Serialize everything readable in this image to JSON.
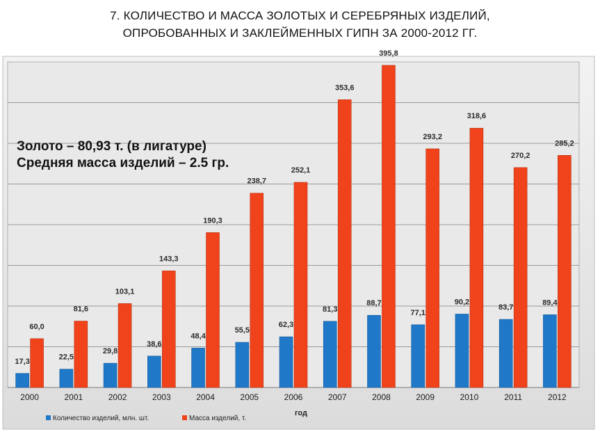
{
  "page": {
    "title_line1": "7. КОЛИЧЕСТВО И МАССА ЗОЛОТЫХ И СЕРЕБРЯНЫХ ИЗДЕЛИЙ,",
    "title_line2": "ОПРОБОВАННЫХ И ЗАКЛЕЙМЕННЫХ ГИПН ЗА 2000-2012 ГГ."
  },
  "chart_data": {
    "type": "bar",
    "title": "7. КОЛИЧЕСТВО И МАССА ЗОЛОТЫХ И СЕРЕБРЯНЫХ ИЗДЕЛИЙ, ОПРОБОВАННЫХ И ЗАКЛЕЙМЕННЫХ ГИПН ЗА 2000-2012 ГГ.",
    "xlabel": "год",
    "ylabel": "",
    "ylim": [
      0,
      400
    ],
    "grid": true,
    "legend_position": "bottom-left",
    "categories": [
      "2000",
      "2001",
      "2002",
      "2003",
      "2004",
      "2005",
      "2006",
      "2007",
      "2008",
      "2009",
      "2010",
      "2011",
      "2012"
    ],
    "series": [
      {
        "name": "Количество изделий, млн. шт.",
        "color": "#1f78c8",
        "values": [
          17.3,
          22.5,
          29.8,
          38.6,
          48.4,
          55.5,
          62.3,
          81.3,
          88.7,
          77.1,
          90.2,
          83.7,
          89.4
        ],
        "labels": [
          "17,3",
          "22,5",
          "29,8",
          "38,6",
          "48,4",
          "55,5",
          "62,3",
          "81,3",
          "88,7",
          "77,1",
          "90,2",
          "83,7",
          "89,4"
        ]
      },
      {
        "name": "Масса изделий, т.",
        "color": "#f0431b",
        "values": [
          60.0,
          81.6,
          103.1,
          143.3,
          190.3,
          238.7,
          252.1,
          353.6,
          395.8,
          293.2,
          318.6,
          270.2,
          285.2
        ],
        "labels": [
          "60,0",
          "81,6",
          "103,1",
          "143,3",
          "190,3",
          "238,7",
          "252,1",
          "353,6",
          "395,8",
          "293,2",
          "318,6",
          "270,2",
          "285,2"
        ]
      }
    ],
    "annotations": [
      "Золото – 80,93 т. (в лигатуре)",
      "Средняя масса изделий – 2.5 гр."
    ],
    "colors": {
      "plot_background": "#e9e9e9",
      "grid": "#9a9a9a",
      "frame": "#b0b0b0"
    }
  }
}
